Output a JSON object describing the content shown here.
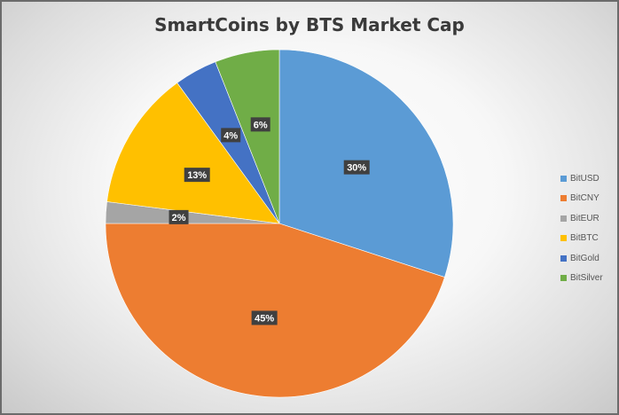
{
  "chart_data": {
    "type": "pie",
    "title": "SmartCoins by BTS Market Cap",
    "categories": [
      "BitUSD",
      "BitCNY",
      "BitEUR",
      "BitBTC",
      "BitGold",
      "BitSilver"
    ],
    "values": [
      30,
      45,
      2,
      13,
      4,
      6
    ],
    "data_labels": [
      "30%",
      "45%",
      "2%",
      "13%",
      "4%",
      "6%"
    ],
    "colors": [
      "#5b9bd5",
      "#ed7d31",
      "#a5a5a5",
      "#ffc000",
      "#4472c4",
      "#70ad47"
    ],
    "legend_position": "right",
    "start_angle": "top, clockwise"
  }
}
